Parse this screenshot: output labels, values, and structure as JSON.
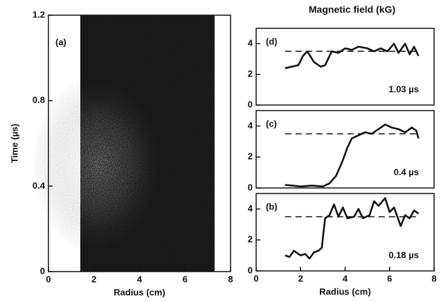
{
  "chart_data": [
    {
      "type": "image",
      "panel_label": "(a)",
      "xlabel": "Radius (cm)",
      "ylabel": "Time (µs)",
      "xlim": [
        0,
        8
      ],
      "xticks": [
        0,
        2,
        4,
        6,
        8
      ],
      "ylim": [
        0,
        1.2
      ],
      "yticks": [
        0,
        0.4,
        0.8,
        1.2
      ],
      "image_x": [
        1.4,
        7.3
      ]
    },
    {
      "type": "line",
      "title": "Magnetic field (kG)",
      "panel_label": "(d)",
      "annotation": "1.03 µs",
      "xlim": [
        0,
        8
      ],
      "ylim": [
        0,
        5
      ],
      "yticks": [
        0,
        2,
        4
      ],
      "reference_line": 3.5,
      "color": "#111111",
      "x": [
        1.3,
        1.6,
        1.9,
        2.1,
        2.3,
        2.6,
        2.9,
        3.1,
        3.4,
        3.7,
        4.0,
        4.3,
        4.6,
        5.0,
        5.3,
        5.6,
        5.9,
        6.2,
        6.4,
        6.7,
        6.9,
        7.1,
        7.3
      ],
      "values": [
        2.4,
        2.5,
        2.6,
        3.2,
        3.5,
        2.8,
        2.5,
        2.6,
        3.5,
        3.4,
        3.7,
        3.6,
        3.8,
        3.7,
        3.5,
        3.7,
        3.5,
        4.0,
        3.4,
        4.0,
        3.3,
        3.8,
        3.2
      ]
    },
    {
      "type": "line",
      "panel_label": "(c)",
      "annotation": "0.4 µs",
      "xlim": [
        0,
        8
      ],
      "ylim": [
        0,
        5
      ],
      "yticks": [
        0,
        2,
        4
      ],
      "reference_line": 3.5,
      "color": "#111111",
      "x": [
        1.3,
        2.0,
        2.5,
        3.0,
        3.3,
        3.6,
        3.9,
        4.1,
        4.3,
        4.6,
        4.9,
        5.2,
        5.5,
        5.8,
        6.1,
        6.4,
        6.7,
        7.0,
        7.2,
        7.3
      ],
      "values": [
        0.2,
        0.1,
        0.15,
        0.1,
        0.3,
        0.8,
        1.8,
        2.6,
        3.2,
        3.4,
        3.6,
        3.5,
        3.8,
        4.1,
        3.9,
        3.8,
        3.6,
        3.9,
        3.7,
        3.2
      ]
    },
    {
      "type": "line",
      "panel_label": "(b)",
      "annotation": "0.18  µs",
      "xlabel": "Radius (cm)",
      "xlim": [
        0,
        8
      ],
      "xticks": [
        0,
        2,
        4,
        6,
        8
      ],
      "ylim": [
        0,
        5
      ],
      "yticks": [
        0,
        2,
        4
      ],
      "reference_line": 3.5,
      "color": "#111111",
      "x": [
        1.3,
        1.5,
        1.7,
        2.0,
        2.2,
        2.4,
        2.6,
        2.8,
        2.95,
        3.1,
        3.3,
        3.5,
        3.7,
        3.9,
        4.1,
        4.4,
        4.6,
        4.8,
        5.1,
        5.3,
        5.5,
        5.8,
        6.0,
        6.2,
        6.5,
        6.7,
        6.9,
        7.1,
        7.3
      ],
      "values": [
        1.0,
        0.9,
        1.3,
        1.0,
        1.1,
        0.8,
        1.2,
        1.3,
        1.5,
        3.4,
        3.6,
        4.3,
        3.5,
        4.1,
        3.4,
        3.5,
        4.0,
        3.4,
        3.6,
        4.5,
        4.2,
        4.7,
        3.8,
        4.1,
        2.9,
        3.6,
        3.4,
        3.9,
        3.7
      ]
    }
  ]
}
